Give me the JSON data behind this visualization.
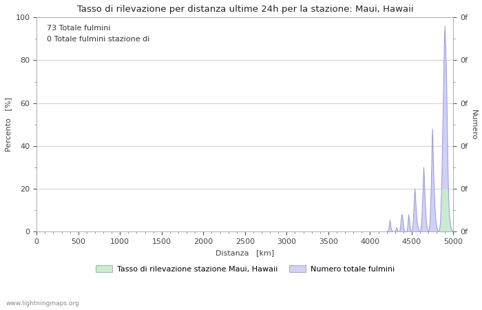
{
  "title": "Tasso di rilevazione per distanza ultime 24h per la stazione: Maui, Hawaii",
  "xlabel": "Distanza   [km]",
  "ylabel_left": "Percento   [%]",
  "ylabel_right": "Numero",
  "annotation_line1": "73 Totale fulmini",
  "annotation_line2": "0 Totale fulmini stazione di",
  "legend_label1": "Tasso di rilevazione stazione Maui, Hawaii",
  "legend_label2": "Numero totale fulmini",
  "watermark": "www.lightningmaps.org",
  "xlim": [
    0,
    5000
  ],
  "ylim_left": [
    0,
    100
  ],
  "ylim_right": [
    0,
    100
  ],
  "right_tick_labels": [
    "0f",
    "0f",
    "0f",
    "0f",
    "0f",
    "0f"
  ],
  "right_tick_positions": [
    0,
    20,
    40,
    60,
    80,
    100
  ],
  "xticks": [
    0,
    500,
    1000,
    1500,
    2000,
    2500,
    3000,
    3500,
    4000,
    4500,
    5000
  ],
  "yticks_left": [
    0,
    20,
    40,
    60,
    80,
    100
  ],
  "background_color": "#ffffff",
  "grid_color": "#c8c8c8",
  "line_color_blue": "#9898d8",
  "fill_color_blue": "#d0d0f8",
  "fill_color_green": "#c8f0c8",
  "legend_patch1_color": "#c8f0c8",
  "legend_patch2_color": "#d0d0f8",
  "title_fontsize": 9.5,
  "axis_fontsize": 8,
  "annotation_fontsize": 8,
  "lightning_x": [
    4200,
    4210,
    4220,
    4225,
    4230,
    4235,
    4240,
    4245,
    4250,
    4255,
    4260,
    4265,
    4270,
    4275,
    4280,
    4285,
    4290,
    4295,
    4300,
    4305,
    4310,
    4315,
    4320,
    4325,
    4330,
    4335,
    4350,
    4355,
    4360,
    4365,
    4370,
    4375,
    4380,
    4385,
    4390,
    4395,
    4400,
    4405,
    4410,
    4415,
    4420,
    4425,
    4430,
    4435,
    4440,
    4445,
    4450,
    4455,
    4460,
    4465,
    4470,
    4475,
    4480,
    4485,
    4490,
    4495,
    4500,
    4505,
    4510,
    4515,
    4520,
    4525,
    4530,
    4535,
    4540,
    4545,
    4550,
    4555,
    4560,
    4565,
    4570,
    4575,
    4580,
    4585,
    4590,
    4595,
    4600,
    4605,
    4610,
    4615,
    4620,
    4625,
    4630,
    4635,
    4640,
    4645,
    4650,
    4655,
    4660,
    4665,
    4670,
    4675,
    4680,
    4685,
    4690,
    4695,
    4700,
    4705,
    4710,
    4715,
    4720,
    4725,
    4730,
    4735,
    4740,
    4745,
    4750,
    4755,
    4760,
    4765,
    4770,
    4775,
    4780,
    4785,
    4790,
    4795,
    4800,
    4805,
    4810,
    4815,
    4820,
    4825,
    4830,
    4835,
    4840,
    4845,
    4850,
    4855,
    4860,
    4865,
    4870,
    4875,
    4880,
    4885,
    4890,
    4895,
    4900,
    4905,
    4910,
    4915,
    4920,
    4925,
    4930,
    4935,
    4940,
    4945,
    4950,
    4955,
    4960,
    4965,
    4970,
    4975,
    4980,
    4985,
    4990,
    4995,
    5000
  ],
  "lightning_y": [
    0,
    0.2,
    0.5,
    1.0,
    2.5,
    4.0,
    5.5,
    4.0,
    2.5,
    1.5,
    1.0,
    0.5,
    0.3,
    0.1,
    0,
    0,
    0,
    0,
    0,
    0.3,
    0.8,
    1.5,
    2.0,
    1.5,
    0.8,
    0,
    0,
    0.3,
    0.8,
    2.0,
    4.0,
    6.0,
    7.5,
    8.0,
    7.5,
    5.5,
    3.5,
    2.0,
    1.0,
    0.5,
    0.2,
    0,
    0,
    0,
    0,
    0.5,
    1.5,
    3.5,
    6.0,
    8.0,
    6.5,
    4.5,
    3.0,
    1.5,
    0.5,
    0,
    0,
    0.5,
    1.5,
    3.0,
    6.0,
    10.0,
    14.0,
    18.0,
    20.0,
    17.0,
    13.0,
    10.0,
    7.0,
    5.0,
    3.5,
    2.5,
    1.5,
    1.0,
    0.5,
    0.2,
    0,
    0.3,
    1.0,
    2.5,
    5.0,
    9.0,
    14.0,
    18.0,
    25.0,
    30.0,
    27.0,
    22.0,
    16.0,
    12.0,
    8.5,
    5.5,
    3.5,
    2.0,
    1.0,
    0.3,
    0,
    0.3,
    1.0,
    2.5,
    5.0,
    10.0,
    16.0,
    24.0,
    31.0,
    42.0,
    48.0,
    42.0,
    33.0,
    26.0,
    20.0,
    15.0,
    11.0,
    8.0,
    5.5,
    3.5,
    2.5,
    1.5,
    1.0,
    0.5,
    0.3,
    0.2,
    0.5,
    1.0,
    2.5,
    5.0,
    9.0,
    15.0,
    22.0,
    32.0,
    42.0,
    53.0,
    63.0,
    75.0,
    85.0,
    92.0,
    96.0,
    90.0,
    85.0,
    78.0,
    68.0,
    55.0,
    42.0,
    30.0,
    22.0,
    15.0,
    10.0,
    7.0,
    5.0,
    3.5,
    2.5,
    1.5,
    1.0,
    0.5,
    0.3,
    0.2,
    0
  ],
  "green_fill_x": [
    4830,
    4835,
    4840,
    4845,
    4850,
    4855,
    4860,
    4865,
    4870,
    4875,
    4880,
    4885,
    4890,
    4895,
    4900,
    4905,
    4910,
    4915,
    4920,
    4925,
    4930,
    4935,
    4940,
    4945,
    4950,
    4955,
    4960,
    4965,
    4970,
    4975,
    4980,
    4985,
    4990,
    4995,
    5000
  ],
  "green_fill_y": [
    0.2,
    0.5,
    1.0,
    2.5,
    5.0,
    9.0,
    15.0,
    20.0,
    20.0,
    20.0,
    20.0,
    20.0,
    20.0,
    20.0,
    20.0,
    20.0,
    20.0,
    20.0,
    20.0,
    20.0,
    20.0,
    20.0,
    20.0,
    15.0,
    10.0,
    7.0,
    5.0,
    3.5,
    2.5,
    1.5,
    1.0,
    0.5,
    0.3,
    0.2,
    0
  ]
}
